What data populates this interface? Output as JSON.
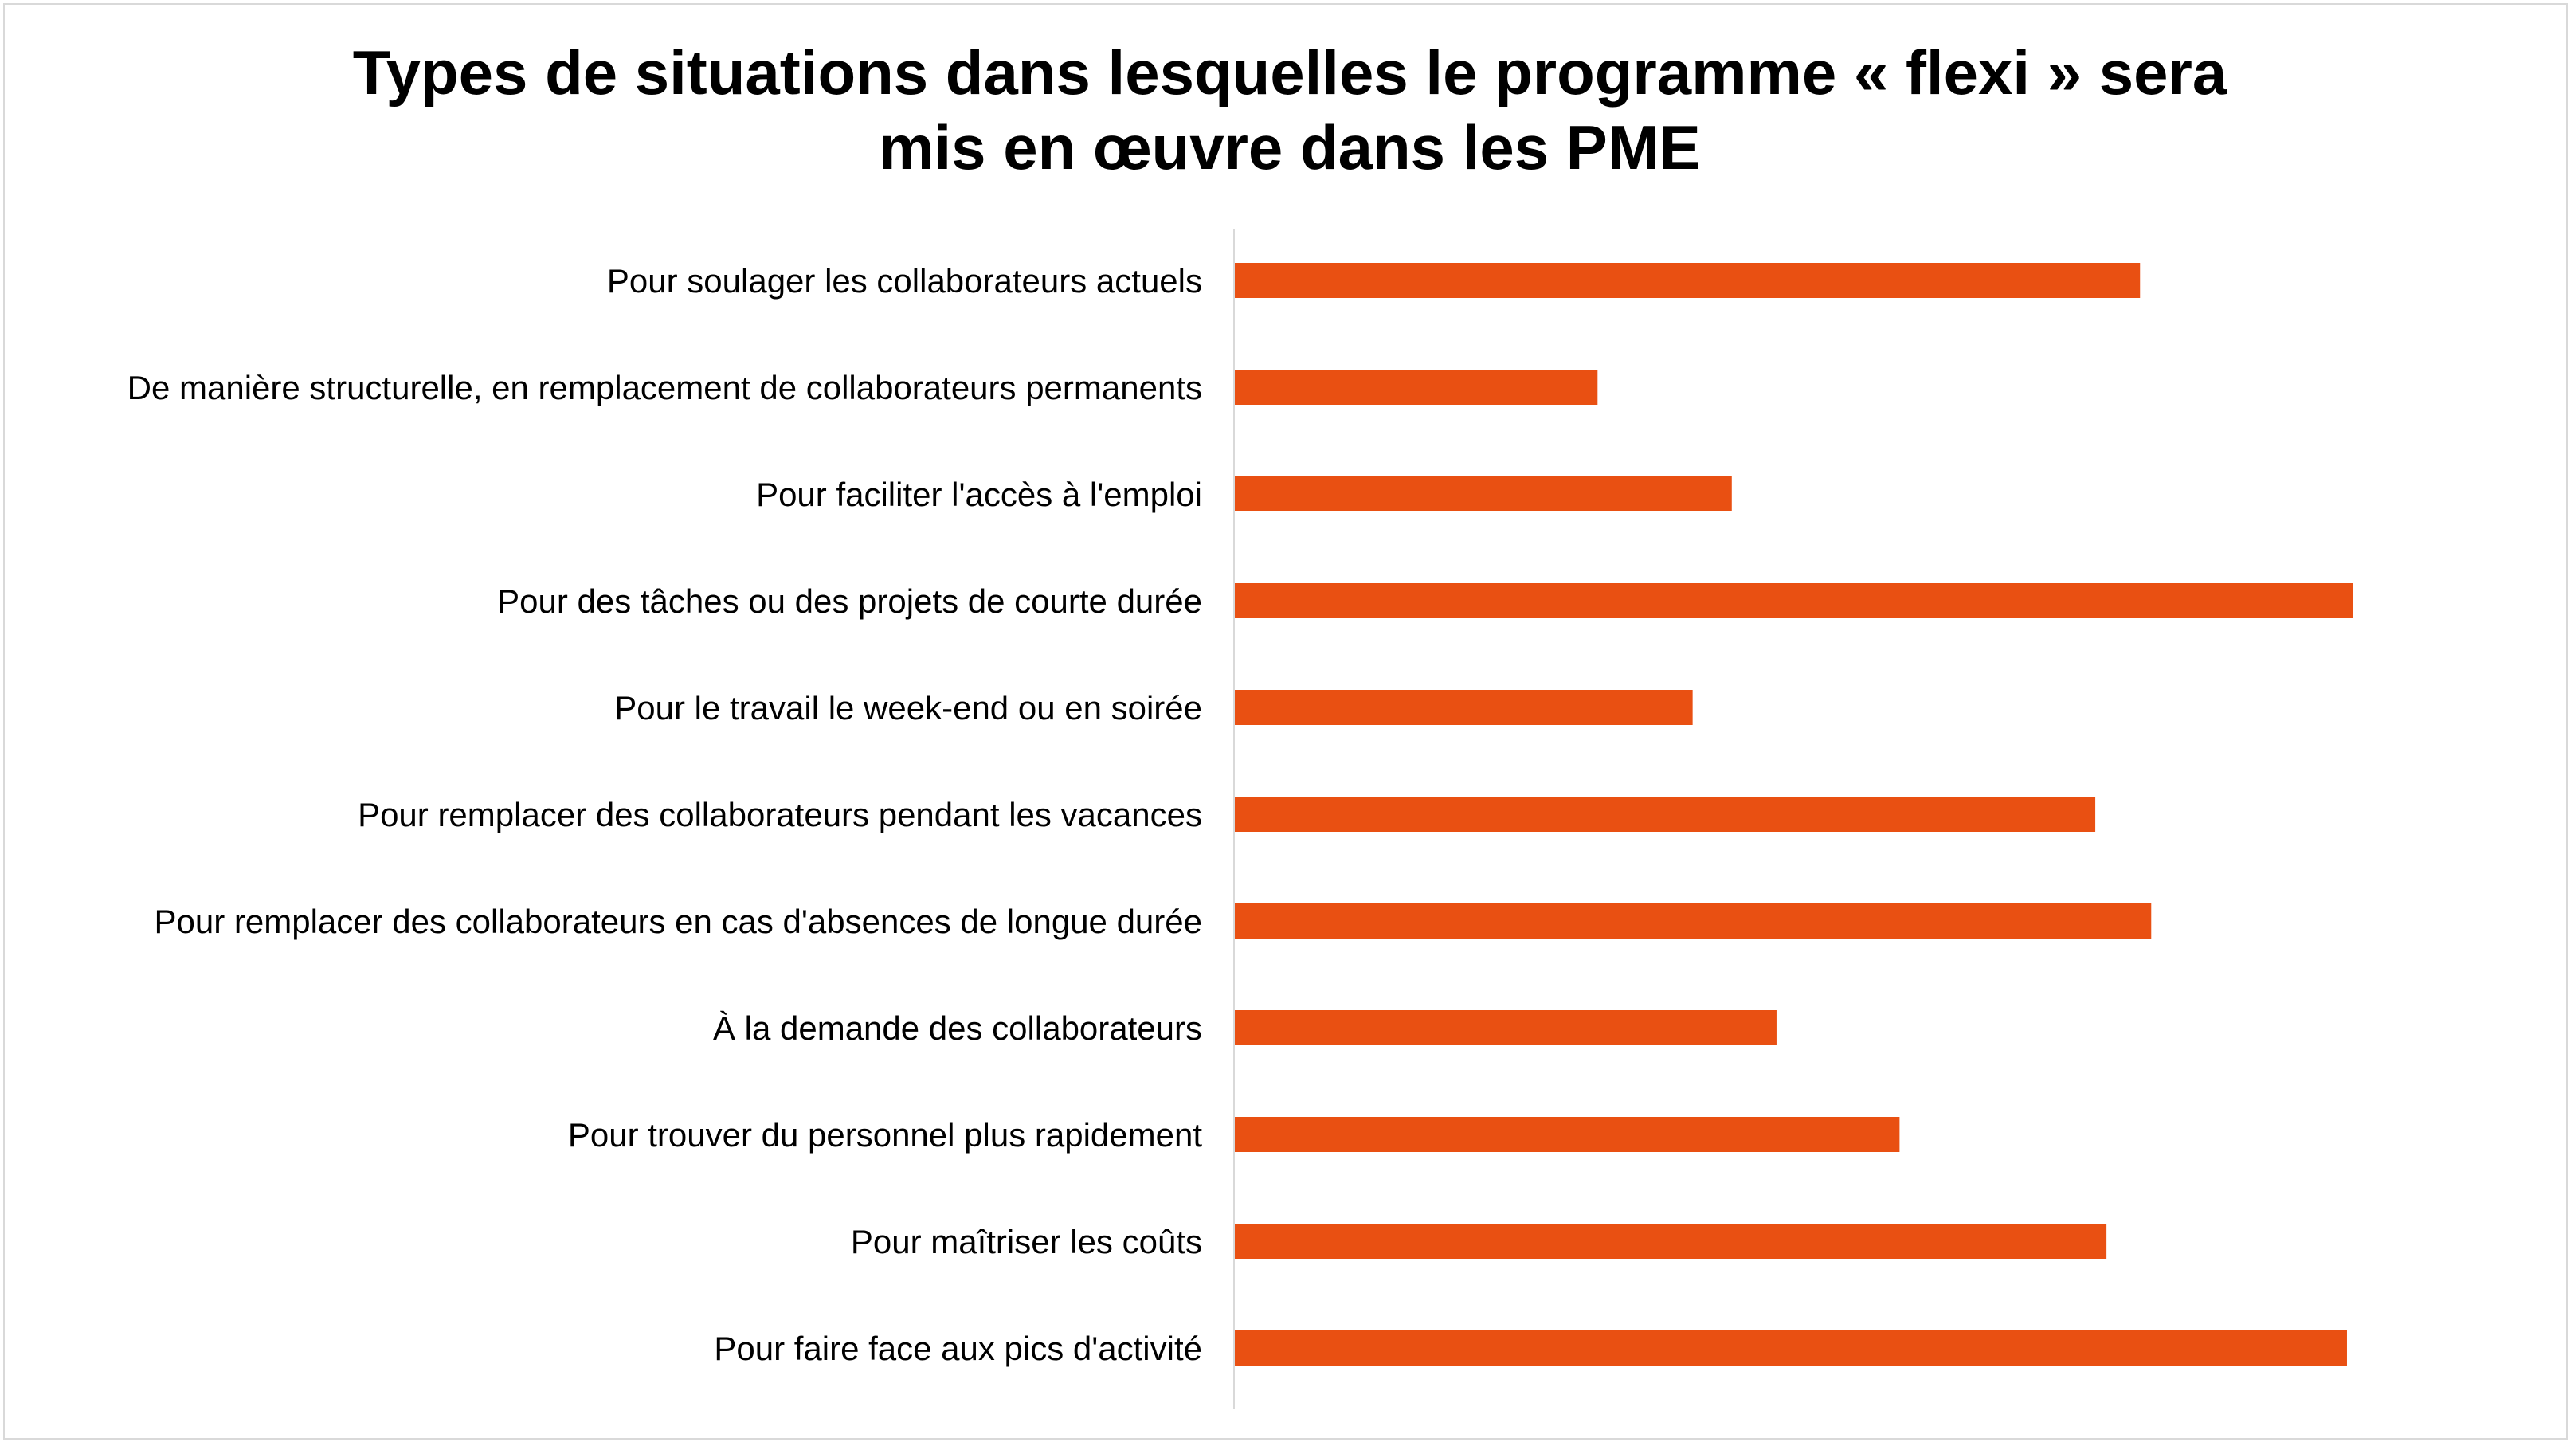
{
  "chart_data": {
    "type": "bar",
    "orientation": "horizontal",
    "title": "Types de situations dans lesquelles le programme « flexi » sera mis en œuvre dans les PME",
    "title_lines": [
      "Types de situations dans lesquelles le programme « flexi » sera",
      "mis en œuvre dans les PME"
    ],
    "categories": [
      "Pour soulager les collaborateurs actuels",
      "De manière structurelle, en remplacement de collaborateurs permanents",
      "Pour faciliter l'accès à l'emploi",
      "Pour des tâches ou des projets de courte durée",
      "Pour le travail le week-end ou en soirée",
      "Pour remplacer des collaborateurs pendant les vacances",
      "Pour remplacer des collaborateurs en cas d'absences de longue durée",
      "À la demande des collaborateurs",
      "Pour trouver du personnel plus rapidement",
      "Pour maîtriser les coûts",
      "Pour faire face aux pics d'activité"
    ],
    "values": [
      81,
      32.5,
      44.5,
      100,
      41,
      77,
      82,
      48.5,
      59.5,
      78,
      99.5
    ],
    "xlim": [
      0,
      100
    ],
    "grid": false,
    "legend": "none",
    "bar_color": "#e95012"
  }
}
